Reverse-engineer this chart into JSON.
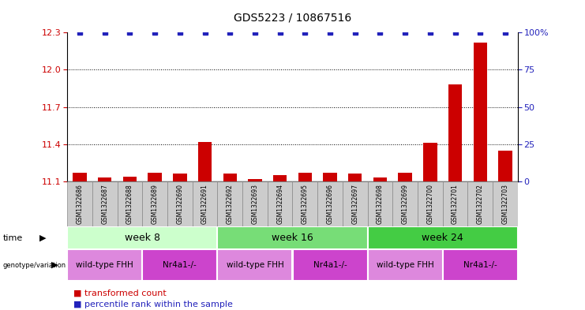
{
  "title": "GDS5223 / 10867516",
  "samples": [
    "GSM1322686",
    "GSM1322687",
    "GSM1322688",
    "GSM1322689",
    "GSM1322690",
    "GSM1322691",
    "GSM1322692",
    "GSM1322693",
    "GSM1322694",
    "GSM1322695",
    "GSM1322696",
    "GSM1322697",
    "GSM1322698",
    "GSM1322699",
    "GSM1322700",
    "GSM1322701",
    "GSM1322702",
    "GSM1322703"
  ],
  "bar_values": [
    11.17,
    11.13,
    11.14,
    11.17,
    11.16,
    11.42,
    11.16,
    11.12,
    11.15,
    11.17,
    11.17,
    11.16,
    11.13,
    11.17,
    11.41,
    11.88,
    12.22,
    11.35
  ],
  "percentile_values": [
    100,
    100,
    100,
    100,
    100,
    100,
    100,
    100,
    100,
    100,
    100,
    100,
    100,
    100,
    100,
    100,
    100,
    100
  ],
  "bar_color": "#cc0000",
  "dot_color": "#2222bb",
  "ylim_left": [
    11.1,
    12.3
  ],
  "ylim_right": [
    0,
    100
  ],
  "yticks_left": [
    11.1,
    11.4,
    11.7,
    12.0,
    12.3
  ],
  "yticks_right": [
    0,
    25,
    50,
    75,
    100
  ],
  "hlines": [
    11.4,
    11.7,
    12.0
  ],
  "time_groups": [
    {
      "label": "week 8",
      "start": 0,
      "end": 5,
      "color": "#ccffcc"
    },
    {
      "label": "week 16",
      "start": 6,
      "end": 11,
      "color": "#77dd77"
    },
    {
      "label": "week 24",
      "start": 12,
      "end": 17,
      "color": "#44cc44"
    }
  ],
  "genotype_groups": [
    {
      "label": "wild-type FHH",
      "start": 0,
      "end": 2,
      "color": "#dd88dd"
    },
    {
      "label": "Nr4a1-/-",
      "start": 3,
      "end": 5,
      "color": "#cc44cc"
    },
    {
      "label": "wild-type FHH",
      "start": 6,
      "end": 8,
      "color": "#dd88dd"
    },
    {
      "label": "Nr4a1-/-",
      "start": 9,
      "end": 11,
      "color": "#cc44cc"
    },
    {
      "label": "wild-type FHH",
      "start": 12,
      "end": 14,
      "color": "#dd88dd"
    },
    {
      "label": "Nr4a1-/-",
      "start": 15,
      "end": 17,
      "color": "#cc44cc"
    }
  ],
  "legend_bar_label": "transformed count",
  "legend_dot_label": "percentile rank within the sample",
  "bar_color_left": "#cc0000",
  "bar_color_right": "#2222bb",
  "sample_bg": "#cccccc",
  "plot_bg": "#ffffff"
}
